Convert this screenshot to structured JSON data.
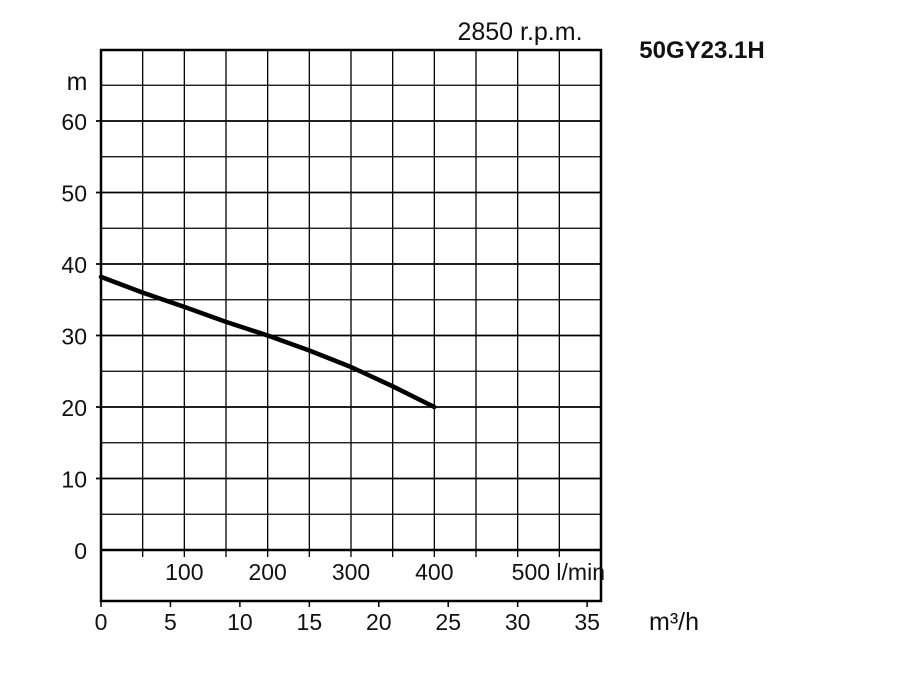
{
  "chart_data": {
    "type": "line",
    "title": "50GY23.1H",
    "subtitle": "2850 r.p.m.",
    "ylabel": "m",
    "xlabel": "m³/h",
    "secondary_xlabel": "l/min",
    "ylim": [
      -7,
      70
    ],
    "xlim": [
      0,
      600
    ],
    "y_ticks": [
      {
        "value": 0,
        "label": "0"
      },
      {
        "value": 10,
        "label": "10"
      },
      {
        "value": 20,
        "label": "20"
      },
      {
        "value": 30,
        "label": "30"
      },
      {
        "value": 40,
        "label": "40"
      },
      {
        "value": 50,
        "label": "50"
      },
      {
        "value": 60,
        "label": "60"
      }
    ],
    "x_ticks_lmin": [
      {
        "value": 100,
        "label": "100"
      },
      {
        "value": 200,
        "label": "200"
      },
      {
        "value": 300,
        "label": "300"
      },
      {
        "value": 400,
        "label": "400"
      },
      {
        "value": 500,
        "label": "500 l/min"
      }
    ],
    "x_ticks_m3h": [
      {
        "value": 0,
        "label": "0"
      },
      {
        "value": 5,
        "label": "5"
      },
      {
        "value": 10,
        "label": "10"
      },
      {
        "value": 15,
        "label": "15"
      },
      {
        "value": 20,
        "label": "20"
      },
      {
        "value": 25,
        "label": "25"
      },
      {
        "value": 30,
        "label": "30"
      },
      {
        "value": 35,
        "label": "35"
      }
    ],
    "grid": true,
    "series": [
      {
        "x": [
          0,
          50,
          100,
          150,
          200,
          250,
          300,
          350,
          400
        ],
        "y": [
          38.2,
          36.0,
          34.0,
          31.9,
          30.0,
          27.9,
          25.6,
          22.9,
          20.0
        ]
      }
    ]
  }
}
